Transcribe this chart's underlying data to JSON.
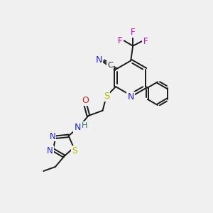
{
  "bg_color": "#f0f0f0",
  "bond_color": "#1a1a1a",
  "N_color": "#2222cc",
  "O_color": "#cc2222",
  "S_color": "#bbbb00",
  "F_color": "#cc00cc",
  "H_color": "#336666",
  "figsize": [
    3.0,
    3.0
  ],
  "dpi": 100,
  "xlim": [
    0,
    10
  ],
  "ylim": [
    0,
    10
  ]
}
